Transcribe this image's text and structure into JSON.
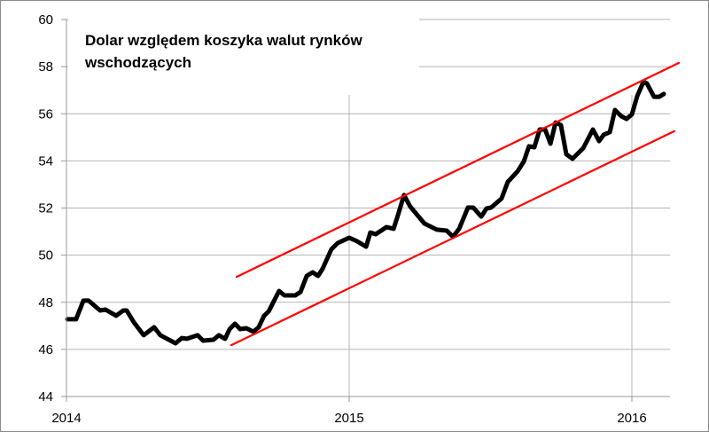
{
  "chart_data": {
    "type": "line",
    "title": [
      "Dolar względem koszyka walut rynków",
      "wschodzących"
    ],
    "xlabel": "",
    "ylabel": "",
    "xlim": [
      2014,
      2016.15
    ],
    "ylim": [
      44,
      60
    ],
    "y_ticks": [
      "44",
      "46",
      "48",
      "50",
      "52",
      "54",
      "56",
      "58",
      "60"
    ],
    "x_ticks": [
      {
        "value": 2014,
        "label": "2014"
      },
      {
        "value": 2015,
        "label": "2015"
      },
      {
        "value": 2016,
        "label": "2016"
      }
    ],
    "grid": "horizontal every 2, vertical at year ticks",
    "legend": "none",
    "series": [
      {
        "name": "Dolar vs EM currency basket",
        "color": "#000000",
        "points": [
          [
            2014.003,
            47.28
          ],
          [
            2014.034,
            47.28
          ],
          [
            2014.06,
            48.07
          ],
          [
            2014.078,
            48.07
          ],
          [
            2014.119,
            47.65
          ],
          [
            2014.138,
            47.69
          ],
          [
            2014.176,
            47.43
          ],
          [
            2014.201,
            47.65
          ],
          [
            2014.213,
            47.65
          ],
          [
            2014.238,
            47.16
          ],
          [
            2014.273,
            46.6
          ],
          [
            2014.31,
            46.94
          ],
          [
            2014.332,
            46.6
          ],
          [
            2014.386,
            46.26
          ],
          [
            2014.408,
            46.48
          ],
          [
            2014.426,
            46.45
          ],
          [
            2014.464,
            46.6
          ],
          [
            2014.483,
            46.37
          ],
          [
            2014.52,
            46.41
          ],
          [
            2014.539,
            46.6
          ],
          [
            2014.561,
            46.45
          ],
          [
            2014.577,
            46.86
          ],
          [
            2014.596,
            47.09
          ],
          [
            2014.614,
            46.86
          ],
          [
            2014.636,
            46.9
          ],
          [
            2014.661,
            46.75
          ],
          [
            2014.68,
            46.94
          ],
          [
            2014.699,
            47.43
          ],
          [
            2014.715,
            47.61
          ],
          [
            2014.752,
            48.48
          ],
          [
            2014.771,
            48.29
          ],
          [
            2014.809,
            48.29
          ],
          [
            2014.828,
            48.44
          ],
          [
            2014.85,
            49.12
          ],
          [
            2014.871,
            49.27
          ],
          [
            2014.89,
            49.12
          ],
          [
            2014.906,
            49.42
          ],
          [
            2014.937,
            50.25
          ],
          [
            2014.959,
            50.51
          ],
          [
            2015.0,
            50.74
          ],
          [
            2015.028,
            50.59
          ],
          [
            2015.06,
            50.36
          ],
          [
            2015.075,
            50.96
          ],
          [
            2015.094,
            50.89
          ],
          [
            2015.132,
            51.19
          ],
          [
            2015.157,
            51.12
          ],
          [
            2015.172,
            51.68
          ],
          [
            2015.194,
            52.55
          ],
          [
            2015.216,
            52.06
          ],
          [
            2015.266,
            51.34
          ],
          [
            2015.31,
            51.08
          ],
          [
            2015.345,
            51.04
          ],
          [
            2015.367,
            50.78
          ],
          [
            2015.389,
            51.12
          ],
          [
            2015.42,
            52.02
          ],
          [
            2015.439,
            52.02
          ],
          [
            2015.467,
            51.64
          ],
          [
            2015.486,
            51.98
          ],
          [
            2015.502,
            52.02
          ],
          [
            2015.539,
            52.4
          ],
          [
            2015.561,
            53.11
          ],
          [
            2015.596,
            53.56
          ],
          [
            2015.618,
            53.98
          ],
          [
            2015.636,
            54.62
          ],
          [
            2015.655,
            54.58
          ],
          [
            2015.674,
            55.33
          ],
          [
            2015.693,
            55.33
          ],
          [
            2015.712,
            54.73
          ],
          [
            2015.73,
            55.63
          ],
          [
            2015.749,
            55.52
          ],
          [
            2015.768,
            54.28
          ],
          [
            2015.79,
            54.09
          ],
          [
            2015.828,
            54.54
          ],
          [
            2015.862,
            55.33
          ],
          [
            2015.884,
            54.84
          ],
          [
            2015.9,
            55.11
          ],
          [
            2015.922,
            55.22
          ],
          [
            2015.94,
            56.16
          ],
          [
            2015.962,
            55.9
          ],
          [
            2015.981,
            55.78
          ],
          [
            2016.0,
            55.97
          ],
          [
            2016.019,
            56.76
          ],
          [
            2016.041,
            57.36
          ],
          [
            2016.053,
            57.29
          ],
          [
            2016.078,
            56.72
          ],
          [
            2016.097,
            56.72
          ],
          [
            2016.113,
            56.84
          ]
        ]
      },
      {
        "name": "Upper channel line",
        "color": "#ff0000",
        "points": [
          [
            2014.602,
            49.08
          ],
          [
            2016.166,
            58.16
          ]
        ]
      },
      {
        "name": "Lower channel line",
        "color": "#ff0000",
        "points": [
          [
            2014.583,
            46.18
          ],
          [
            2016.15,
            55.26
          ]
        ]
      }
    ]
  }
}
